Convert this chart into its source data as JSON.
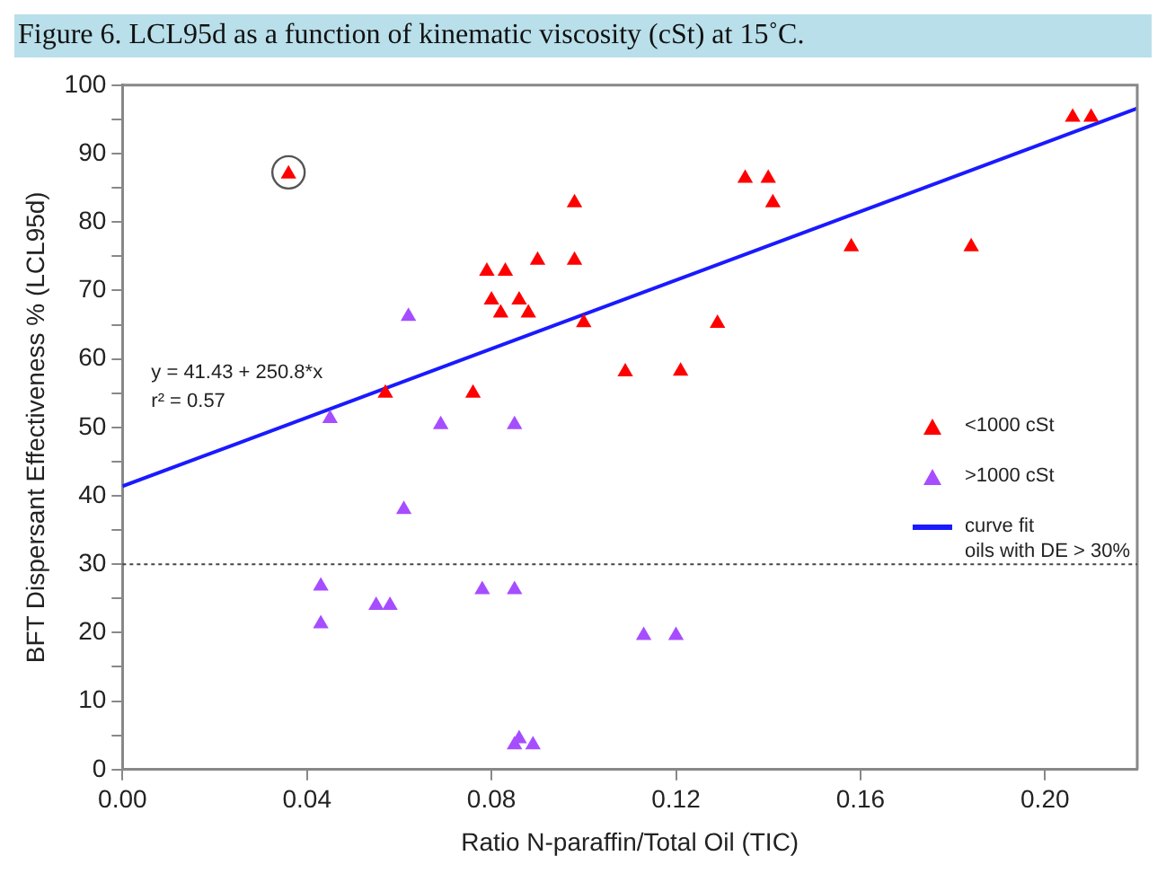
{
  "chart_data": {
    "type": "scatter",
    "title": "Figure 6. LCL95d as a function of kinematic viscosity (cSt) at 15˚C.",
    "xlabel": "Ratio N-paraffin/Total Oil (TIC)",
    "ylabel": "BFT Dispersant Effectiveness % (LCL95d)",
    "xlim": [
      0,
      0.22
    ],
    "xticks": [
      {
        "value": 0,
        "label": "0.00"
      },
      {
        "value": 0.04,
        "label": "0.04"
      },
      {
        "value": 0.08,
        "label": "0.08"
      },
      {
        "value": 0.12,
        "label": "0.12"
      },
      {
        "value": 0.16,
        "label": "0.16"
      },
      {
        "value": 0.2,
        "label": "0.20"
      }
    ],
    "ylim": [
      0,
      100
    ],
    "yticks": [
      0,
      {
        "value": 5,
        "label": null
      },
      10,
      {
        "value": 15,
        "label": null
      },
      20,
      {
        "value": 25,
        "label": null
      },
      30,
      {
        "value": 35,
        "label": null
      },
      40,
      {
        "value": 45,
        "label": null
      },
      50,
      {
        "value": 55,
        "label": null
      },
      60,
      {
        "value": 65,
        "label": null
      },
      70,
      {
        "value": 75,
        "label": null
      },
      80,
      {
        "value": 85,
        "label": null
      },
      90,
      {
        "value": 95,
        "label": null
      },
      100
    ],
    "marker": "triangle",
    "legend": "right",
    "grid": false,
    "series": [
      {
        "name": "<1000 cSt",
        "color": "#ff0000",
        "x": [
          0.036,
          0.057,
          0.076,
          0.079,
          0.083,
          0.08,
          0.082,
          0.086,
          0.088,
          0.09,
          0.098,
          0.098,
          0.1,
          0.109,
          0.121,
          0.129,
          0.135,
          0.14,
          0.141,
          0.158,
          0.184,
          0.206,
          0.21
        ],
        "values": [
          87,
          55,
          55,
          72.8,
          72.8,
          68.6,
          66.7,
          68.6,
          66.7,
          74.4,
          82.8,
          74.4,
          65.3,
          58.1,
          58.2,
          65.2,
          86.4,
          86.4,
          82.8,
          76.4,
          76.4,
          95.3,
          95.3
        ]
      },
      {
        "name": ">1000 cSt",
        "color": "#a64dff",
        "x": [
          0.062,
          0.045,
          0.069,
          0.085,
          0.061,
          0.043,
          0.043,
          0.055,
          0.058,
          0.078,
          0.085,
          0.113,
          0.12,
          0.085,
          0.086,
          0.089
        ],
        "values": [
          66.2,
          51.3,
          50.4,
          50.4,
          38,
          26.8,
          21.3,
          24,
          24,
          26.3,
          26.3,
          19.6,
          19.6,
          3.6,
          4.5,
          3.6
        ]
      },
      {
        "name": "curve fit\noils with DE > 30%",
        "type": "line",
        "color": "#1a1aff",
        "marker": "none",
        "line_style": "solid",
        "x": [
          0,
          0.22
        ],
        "values": [
          41.4,
          96.6
        ]
      }
    ],
    "ref_lines": [
      {
        "axis": "y",
        "value": 30,
        "color": "#444444",
        "line_style": "dotted"
      }
    ],
    "annotations": [
      "y = 41.43 + 250.8*x",
      "r² = 0.57"
    ]
  }
}
